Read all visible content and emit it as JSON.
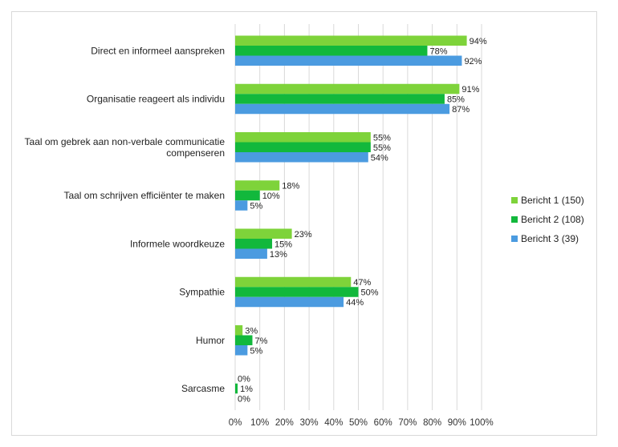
{
  "chart_data": {
    "type": "bar",
    "orientation": "horizontal",
    "title": "",
    "xlabel": "",
    "ylabel": "",
    "xlim": [
      0,
      100
    ],
    "categories": [
      [
        "Direct en informeel aanspreken"
      ],
      [
        "Organisatie reageert als individu"
      ],
      [
        "Taal om gebrek aan non-verbale communicatie",
        "compenseren"
      ],
      [
        "Taal om schrijven efficiënter te maken"
      ],
      [
        "Informele woordkeuze"
      ],
      [
        "Sympathie"
      ],
      [
        "Humor"
      ],
      [
        "Sarcasme"
      ]
    ],
    "series": [
      {
        "name": "Bericht 1 (150)",
        "color": "#7ed33a",
        "values": [
          94,
          91,
          55,
          18,
          23,
          47,
          3,
          0
        ]
      },
      {
        "name": "Bericht 2 (108)",
        "color": "#12b83c",
        "values": [
          78,
          85,
          55,
          10,
          15,
          50,
          7,
          1
        ]
      },
      {
        "name": "Bericht 3 (39)",
        "color": "#4b9be0",
        "values": [
          92,
          87,
          54,
          5,
          13,
          44,
          5,
          0
        ]
      }
    ],
    "ticks": [
      "0%",
      "10%",
      "20%",
      "30%",
      "40%",
      "50%",
      "60%",
      "70%",
      "80%",
      "90%",
      "100%"
    ],
    "grid": true,
    "legend": "right"
  }
}
